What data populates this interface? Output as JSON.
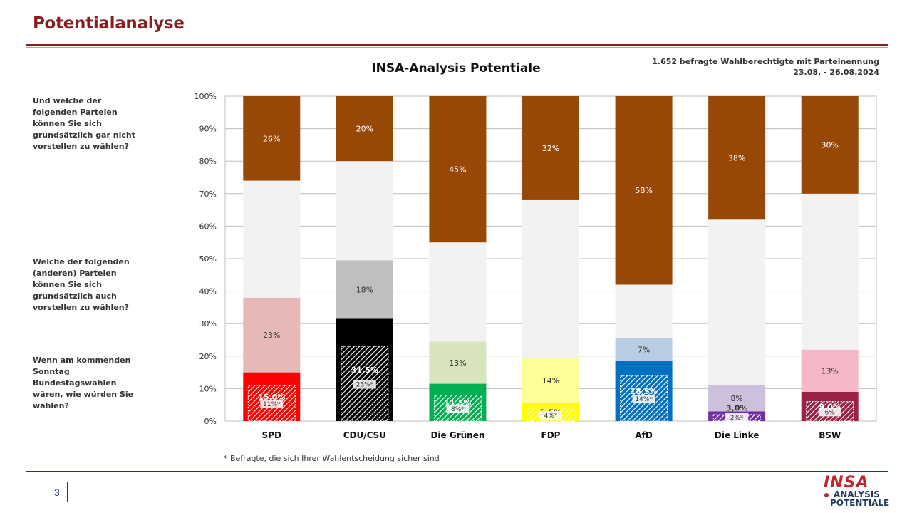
{
  "header": {
    "title": "Potentialanalyse",
    "sample_line1": "1.652 befragte Wahlberechtigte mit Parteinennung",
    "sample_line2": "23.08. - 26.08.2024"
  },
  "questions": [
    "Und welche der folgenden Parteien können Sie sich grundsätzlich  gar nicht vorstellen zu wählen?",
    "Welche der folgenden (anderen) Parteien können Sie sich  grundsätzlich  auch vorstellen zu wählen?",
    "Wenn am kommenden Sonntag Bundestagswahlen wären, wie würden Sie wählen?"
  ],
  "footnote": "* Befragte, die sich Ihrer Wahlentscheidung sicher sind",
  "footer": {
    "page": "3",
    "logo_top": "INSA",
    "logo_line1": "ANALYSIS",
    "logo_line2": "POTENTIALE"
  },
  "colors": {
    "brand": "#8b1c1c",
    "reject": "#974706",
    "neutral": "#f2f2f2",
    "footer": "#1f3a5f"
  },
  "chart_data": {
    "type": "bar",
    "stacked": true,
    "title": "INSA-Analysis Potentiale",
    "categories": [
      "SPD",
      "CDU/CSU",
      "Die Grünen",
      "FDP",
      "AfD",
      "Die Linke",
      "BSW"
    ],
    "ylim": [
      0,
      100
    ],
    "yticks": [
      "0%",
      "10%",
      "20%",
      "30%",
      "40%",
      "50%",
      "60%",
      "70%",
      "80%",
      "90%",
      "100%"
    ],
    "grid": true,
    "series": [
      {
        "values": [
          15.0,
          31.5,
          11.5,
          5.5,
          18.5,
          3.0,
          9.0
        ],
        "labels": [
          "15,0%",
          "31,5%",
          "11,5%",
          "5,5%",
          "18,5%",
          "3,0%",
          "9,0%"
        ],
        "colors": [
          "#ff0000",
          "#000000",
          "#00b050",
          "#ffff00",
          "#0070c0",
          "#7030a0",
          "#9b2245"
        ]
      },
      {
        "values": [
          23,
          18,
          13,
          14,
          7,
          8,
          13
        ],
        "labels": [
          "23%",
          "18%",
          "13%",
          "14%",
          "7%",
          "8%",
          "13%"
        ],
        "colors": [
          "#e6b8b7",
          "#bfbfbf",
          "#d8e4bc",
          "#ffff99",
          "#b8cce4",
          "#ccc0da",
          "#f4b8c8"
        ]
      },
      {
        "values": [
          36,
          30.5,
          30.5,
          48.5,
          16.5,
          51,
          48
        ],
        "labels": [
          "",
          "",
          "",
          "",
          "",
          "",
          ""
        ],
        "colors": [
          "#f2f2f2",
          "#f2f2f2",
          "#f2f2f2",
          "#f2f2f2",
          "#f2f2f2",
          "#f2f2f2",
          "#f2f2f2"
        ]
      },
      {
        "values": [
          26,
          20,
          45,
          32,
          58,
          38,
          30
        ],
        "labels": [
          "26%",
          "20%",
          "45%",
          "32%",
          "58%",
          "38%",
          "30%"
        ],
        "colors": [
          "#974706",
          "#974706",
          "#974706",
          "#974706",
          "#974706",
          "#974706",
          "#974706"
        ]
      }
    ],
    "certain_voters": {
      "values": [
        11,
        23,
        8,
        4,
        14,
        2,
        6
      ],
      "labels": [
        "11%*",
        "23%*",
        "8%*",
        "4%*",
        "14%*",
        "2%*",
        "6%"
      ]
    }
  }
}
